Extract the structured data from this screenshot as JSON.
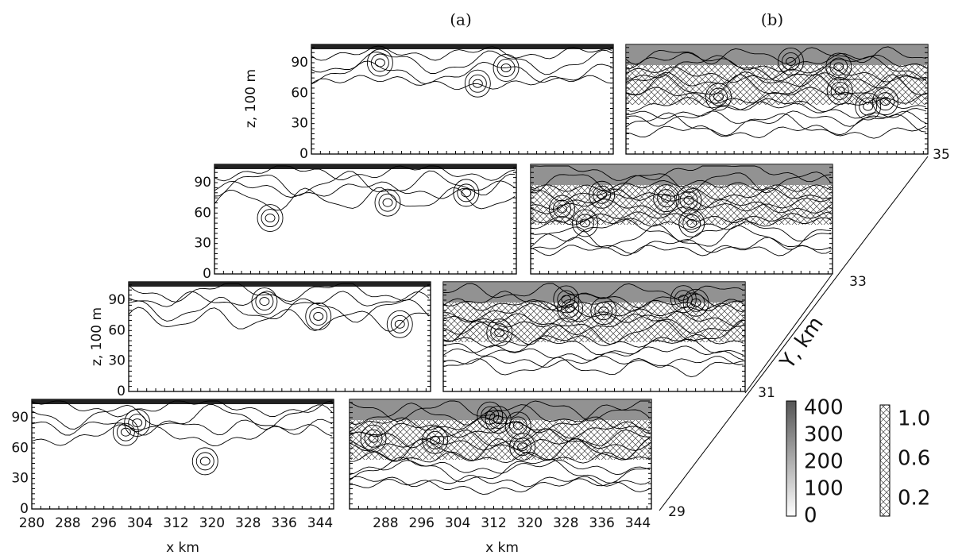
{
  "panel_labels": [
    "(a)",
    "(b)"
  ],
  "y_axis_label": "z, 100 m",
  "y_ticks": [
    0,
    30,
    60,
    90
  ],
  "x_axis_label": "x km",
  "x_ticks_a": [
    280,
    288,
    296,
    304,
    312,
    320,
    328,
    336,
    344
  ],
  "x_ticks_b": [
    288,
    296,
    304,
    312,
    320,
    328,
    336,
    344
  ],
  "y_km_label": "Y, km",
  "y_levels": [
    29,
    31,
    33,
    35
  ],
  "legend_a": [
    400,
    300,
    200,
    100,
    0
  ],
  "legend_b": [
    "1.0",
    "0.6",
    "0.2"
  ]
}
